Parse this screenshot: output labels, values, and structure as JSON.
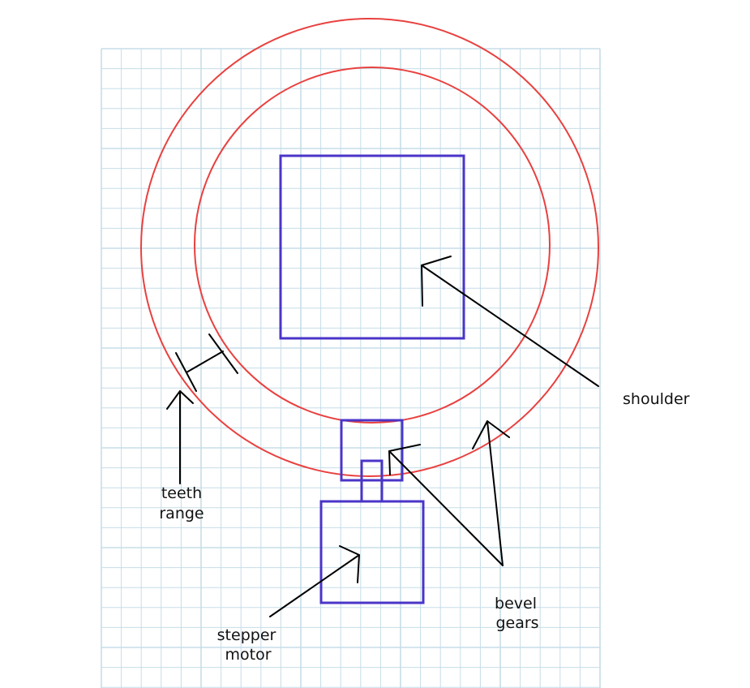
{
  "colors": {
    "background": "#ffffff",
    "grid": "#c6dde8",
    "gear": "#e8413f",
    "component": "#4a35c8",
    "annotation": "#000000"
  },
  "labels": {
    "shoulder": "shoulder",
    "teeth_line1": "teeth",
    "teeth_line2": "range",
    "stepper_line1": "stepper",
    "stepper_line2": "motor",
    "bevel_line1": "bevel",
    "bevel_line2": "gears"
  }
}
